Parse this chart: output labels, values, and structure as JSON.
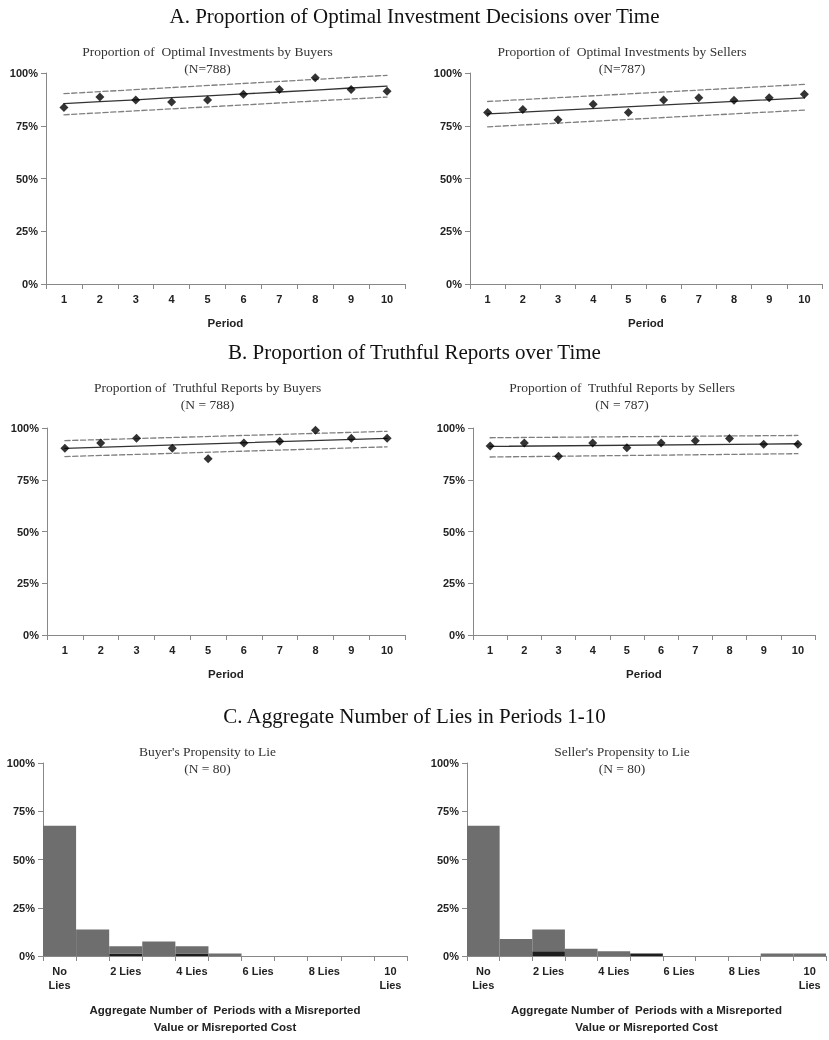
{
  "chart_data": [
    {
      "type": "line",
      "title": "A.  Proportion of Optimal Investment Decisions over Time",
      "subtitle": "Proportion of  Optimal Investments by Buyers\n(N=788)",
      "xlabel": "Period",
      "categories": [
        "1",
        "2",
        "3",
        "4",
        "5",
        "6",
        "7",
        "8",
        "9",
        "10"
      ],
      "ylim": [
        0,
        100
      ],
      "yticks": [
        {
          "value": 0,
          "label": "0%"
        },
        {
          "value": 25,
          "label": "25%"
        },
        {
          "value": 50,
          "label": "50%"
        },
        {
          "value": 75,
          "label": "75%"
        },
        {
          "value": 100,
          "label": "100%"
        }
      ],
      "series": [
        {
          "type": "scatter",
          "marker": "diamond",
          "color": "#000000",
          "values": [
            83.7,
            88.6,
            87.2,
            86.3,
            87.2,
            89.9,
            92.2,
            97.7,
            92.2,
            91.3
          ]
        },
        {
          "line_style": "solid",
          "color": "#333333",
          "values": [
            85.5,
            86.4,
            87.3,
            88.3,
            89.2,
            90.1,
            91.0,
            91.9,
            92.9,
            93.8
          ]
        },
        {
          "line_style": "dashed",
          "color": "#7f7f7f",
          "values": [
            90.2,
            null,
            null,
            null,
            null,
            null,
            null,
            null,
            null,
            98.9
          ]
        },
        {
          "line_style": "dashed",
          "color": "#7f7f7f",
          "values": [
            80.2,
            null,
            null,
            null,
            null,
            null,
            null,
            null,
            null,
            88.6
          ]
        }
      ]
    },
    {
      "type": "line",
      "subtitle": "Proportion of  Optimal Investments by Sellers\n(N=787)",
      "xlabel": "Period",
      "categories": [
        "1",
        "2",
        "3",
        "4",
        "5",
        "6",
        "7",
        "8",
        "9",
        "10"
      ],
      "ylim": [
        0,
        100
      ],
      "yticks": [
        {
          "value": 0,
          "label": "0%"
        },
        {
          "value": 25,
          "label": "25%"
        },
        {
          "value": 50,
          "label": "50%"
        },
        {
          "value": 75,
          "label": "75%"
        },
        {
          "value": 100,
          "label": "100%"
        }
      ],
      "series": [
        {
          "type": "scatter",
          "marker": "diamond",
          "color": "#000000",
          "values": [
            81.3,
            82.7,
            77.8,
            85.2,
            81.3,
            87.2,
            88.3,
            87.1,
            88.3,
            89.9
          ]
        },
        {
          "line_style": "solid",
          "color": "#333333",
          "values": [
            80.6,
            null,
            null,
            null,
            null,
            null,
            null,
            null,
            null,
            88.2
          ]
        },
        {
          "line_style": "dashed",
          "color": "#7f7f7f",
          "values": [
            86.5,
            null,
            null,
            null,
            null,
            null,
            null,
            null,
            null,
            94.6
          ]
        },
        {
          "line_style": "dashed",
          "color": "#7f7f7f",
          "values": [
            74.5,
            null,
            null,
            null,
            null,
            null,
            null,
            null,
            null,
            82.4
          ]
        }
      ]
    },
    {
      "type": "line",
      "title": "B.  Proportion of Truthful Reports over Time",
      "subtitle": "Proportion of  Truthful Reports by Buyers\n(N = 788)",
      "xlabel": "Period",
      "categories": [
        "1",
        "2",
        "3",
        "4",
        "5",
        "6",
        "7",
        "8",
        "9",
        "10"
      ],
      "ylim": [
        0,
        100
      ],
      "yticks": [
        {
          "value": 0,
          "label": "0%"
        },
        {
          "value": 25,
          "label": "25%"
        },
        {
          "value": 50,
          "label": "50%"
        },
        {
          "value": 75,
          "label": "75%"
        },
        {
          "value": 100,
          "label": "100%"
        }
      ],
      "series": [
        {
          "type": "scatter",
          "marker": "diamond",
          "color": "#000000",
          "values": [
            90.2,
            92.7,
            95.0,
            90.2,
            85.2,
            92.7,
            93.6,
            98.9,
            95.0,
            95.0
          ]
        },
        {
          "line_style": "solid",
          "color": "#333333",
          "values": [
            90.2,
            null,
            null,
            null,
            null,
            null,
            null,
            null,
            null,
            95.0
          ]
        },
        {
          "line_style": "dashed",
          "color": "#7f7f7f",
          "values": [
            93.9,
            null,
            null,
            null,
            null,
            null,
            null,
            null,
            null,
            98.4
          ]
        },
        {
          "line_style": "dashed",
          "color": "#7f7f7f",
          "values": [
            86.2,
            null,
            null,
            null,
            null,
            null,
            null,
            null,
            null,
            90.9
          ]
        }
      ]
    },
    {
      "type": "line",
      "subtitle": "Proportion of  Truthful Reports by Sellers\n(N = 787)",
      "xlabel": "Period",
      "categories": [
        "1",
        "2",
        "3",
        "4",
        "5",
        "6",
        "7",
        "8",
        "9",
        "10"
      ],
      "ylim": [
        0,
        100
      ],
      "yticks": [
        {
          "value": 0,
          "label": "0%"
        },
        {
          "value": 25,
          "label": "25%"
        },
        {
          "value": 50,
          "label": "50%"
        },
        {
          "value": 75,
          "label": "75%"
        },
        {
          "value": 100,
          "label": "100%"
        }
      ],
      "series": [
        {
          "type": "scatter",
          "marker": "diamond",
          "color": "#000000",
          "values": [
            91.3,
            92.7,
            86.3,
            92.7,
            90.4,
            92.7,
            93.8,
            94.9,
            92.2,
            92.2
          ]
        },
        {
          "line_style": "solid",
          "color": "#333333",
          "values": [
            91.1,
            null,
            null,
            null,
            null,
            null,
            null,
            null,
            null,
            92.4
          ]
        },
        {
          "line_style": "dashed",
          "color": "#7f7f7f",
          "values": [
            95.3,
            null,
            null,
            null,
            null,
            null,
            null,
            null,
            null,
            96.4
          ]
        },
        {
          "line_style": "dashed",
          "color": "#7f7f7f",
          "values": [
            86.0,
            null,
            null,
            null,
            null,
            null,
            null,
            null,
            null,
            87.6
          ]
        }
      ]
    },
    {
      "type": "bar",
      "stacked": true,
      "title": "C.  Aggregate Number of Lies in Periods 1-10",
      "subtitle": "Buyer's Propensity to Lie\n(N = 80)",
      "xlabel": "Aggregate Number of  Periods with a Misreported\nValue or Misreported Cost",
      "categories": [
        "No\nLies",
        null,
        "2 Lies",
        null,
        "4 Lies",
        null,
        "6 Lies",
        null,
        "8 Lies",
        null,
        "10\nLies"
      ],
      "ylim": [
        0,
        100
      ],
      "yticks": [
        {
          "value": 0,
          "label": "0%"
        },
        {
          "value": 25,
          "label": "25%"
        },
        {
          "value": 50,
          "label": "50%"
        },
        {
          "value": 75,
          "label": "75%"
        },
        {
          "value": 100,
          "label": "100%"
        }
      ],
      "series": [
        {
          "color": "#1e1e1e",
          "values": [
            0,
            0,
            1.25,
            0,
            1.25,
            0,
            0,
            0,
            0,
            0,
            0
          ]
        },
        {
          "color": "#6e6e6e",
          "values": [
            67.5,
            13.75,
            3.75,
            7.5,
            3.75,
            1.25,
            0,
            0,
            0,
            0,
            0
          ]
        }
      ]
    },
    {
      "type": "bar",
      "stacked": true,
      "subtitle": "Seller's Propensity to Lie\n(N = 80)",
      "xlabel": "Aggregate Number of  Periods with a Misreported\nValue or Misreported Cost",
      "categories": [
        "No\nLies",
        null,
        "2 Lies",
        null,
        "4 Lies",
        null,
        "6 Lies",
        null,
        "8 Lies",
        null,
        "10\nLies"
      ],
      "ylim": [
        0,
        100
      ],
      "yticks": [
        {
          "value": 0,
          "label": "0%"
        },
        {
          "value": 25,
          "label": "25%"
        },
        {
          "value": 50,
          "label": "50%"
        },
        {
          "value": 75,
          "label": "75%"
        },
        {
          "value": 100,
          "label": "100%"
        }
      ],
      "series": [
        {
          "color": "#1e1e1e",
          "values": [
            0,
            0,
            2.5,
            0,
            0,
            1.25,
            0,
            0,
            0,
            0,
            0
          ]
        },
        {
          "color": "#6e6e6e",
          "values": [
            67.5,
            8.75,
            11.25,
            3.75,
            2.5,
            0,
            0,
            0,
            0,
            1.25,
            1.25
          ]
        }
      ]
    }
  ]
}
